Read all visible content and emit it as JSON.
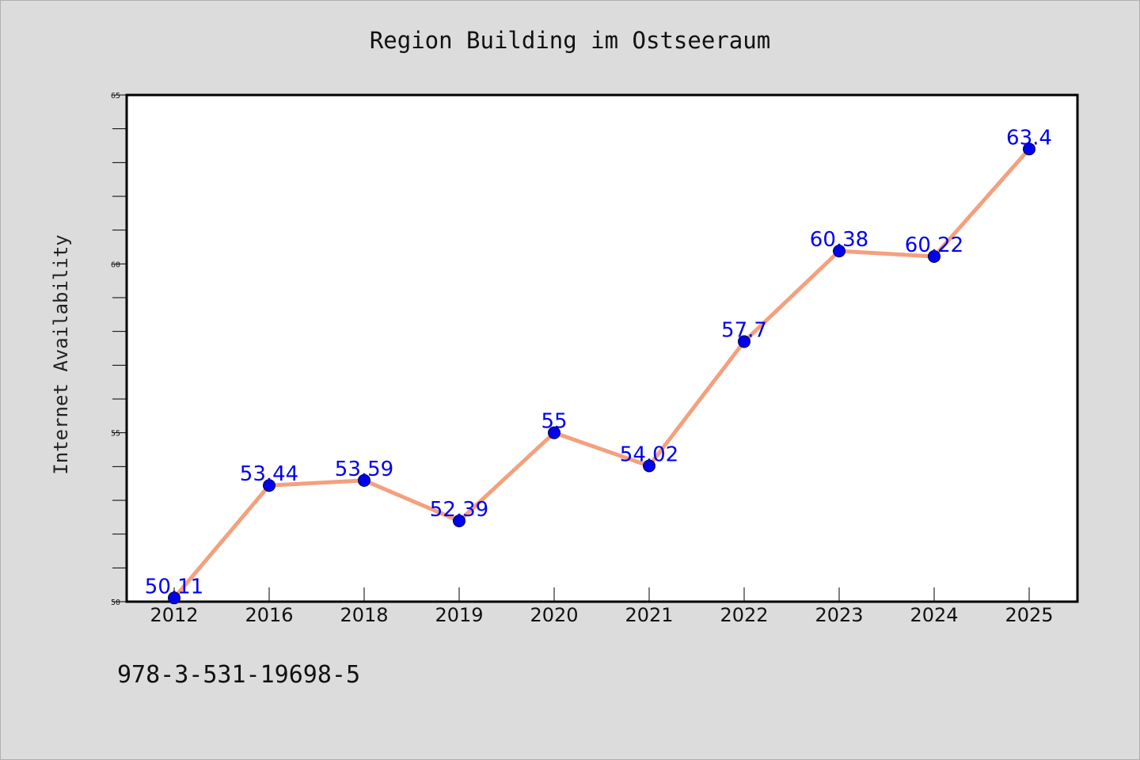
{
  "chart_data": {
    "type": "line",
    "title": "Region Building im Ostseeraum",
    "xlabel": "",
    "ylabel": "Internet Availability",
    "categories": [
      "2012",
      "2016",
      "2018",
      "2019",
      "2020",
      "2021",
      "2022",
      "2023",
      "2024",
      "2025"
    ],
    "series": [
      {
        "values": [
          50.11,
          53.44,
          53.59,
          52.39,
          55,
          54.02,
          57.7,
          60.38,
          60.22,
          63.4
        ],
        "labels": [
          "50.11",
          "53.44",
          "53.59",
          "52.39",
          "55",
          "54.02",
          "57.7",
          "60.38",
          "60.22",
          "63.4"
        ],
        "line_color": "#f4a07e",
        "marker_color": "#0000ee"
      }
    ],
    "ylim": [
      50,
      65
    ],
    "y_ticks": [
      "50",
      "55",
      "60",
      "65"
    ],
    "grid": false,
    "legend": "none"
  },
  "footer": {
    "isbn": "978-3-531-19698-5"
  },
  "colors": {
    "background": "#dcdcdc",
    "plot_background": "#ffffff",
    "label_color": "#0000ee"
  }
}
